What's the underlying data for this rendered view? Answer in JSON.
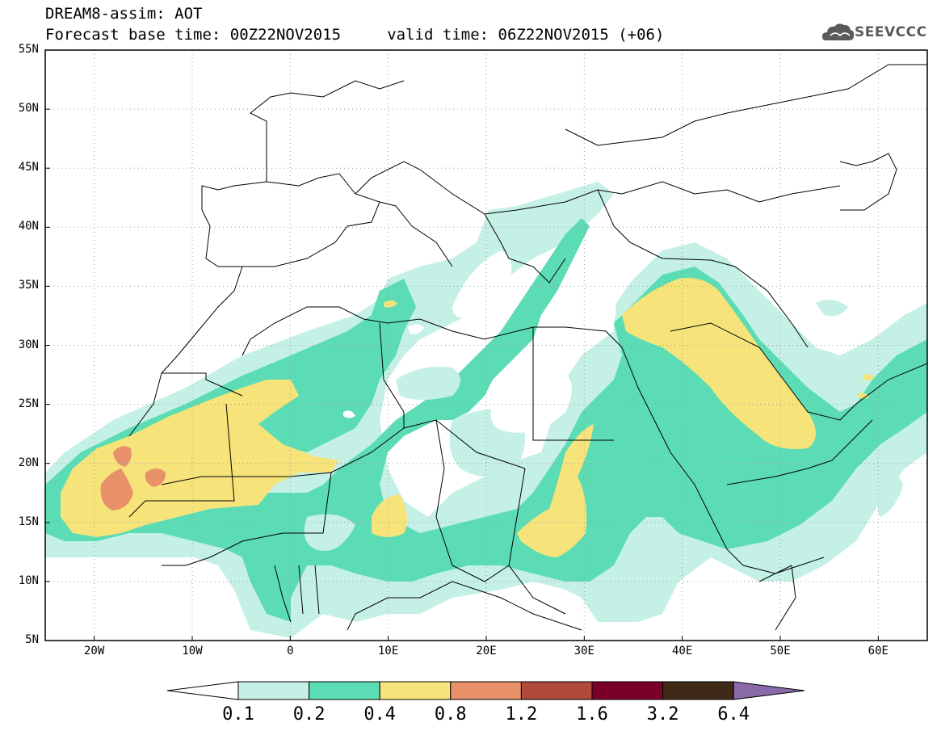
{
  "header": {
    "title_line1": "DREAM8-assim: AOT",
    "title_line2": "Forecast base time: 00Z22NOV2015     valid time: 06Z22NOV2015 (+06)",
    "logo_text": "SEEVCCC"
  },
  "map": {
    "lat_labels": [
      "55N",
      "50N",
      "45N",
      "40N",
      "35N",
      "30N",
      "25N",
      "20N",
      "15N",
      "10N",
      "5N"
    ],
    "lon_labels": [
      "20W",
      "10W",
      "0",
      "10E",
      "20E",
      "30E",
      "40E",
      "50E",
      "60E"
    ],
    "lat_range": [
      5,
      55
    ],
    "lon_range": [
      -25,
      65
    ],
    "grid": "dotted",
    "variable": "AOT"
  },
  "legend": {
    "thresholds": [
      "0.1",
      "0.2",
      "0.4",
      "0.8",
      "1.2",
      "1.6",
      "3.2",
      "6.4"
    ],
    "colors": [
      "#ffffff",
      "#c4f0e6",
      "#5cdcb4",
      "#f6e47a",
      "#e8906a",
      "#b04a3c",
      "#7a0028",
      "#3e2a16",
      "#8a6aa8"
    ]
  },
  "colors": {
    "c01": "#c4f0e6",
    "c02": "#5cdcb4",
    "c04": "#f6e47a",
    "c08": "#e8906a",
    "border": "#000000"
  }
}
